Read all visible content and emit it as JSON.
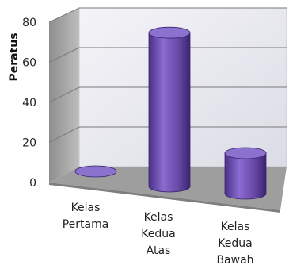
{
  "chart_data": {
    "type": "bar",
    "style": "3d-cylinder",
    "categories": [
      "Kelas\nPertama",
      "Kelas\nKedua\nAtas",
      "Kelas\nKedua\nBawah"
    ],
    "values": [
      0,
      76,
      20
    ],
    "ylabel": "Peratus",
    "yticks": [
      0,
      20,
      40,
      60,
      80
    ],
    "ylim": [
      0,
      80
    ],
    "grid": true,
    "colors": {
      "bar": "#6f4fb0",
      "wall": "#e8e8ee",
      "floor": "#9b9b9b"
    }
  }
}
